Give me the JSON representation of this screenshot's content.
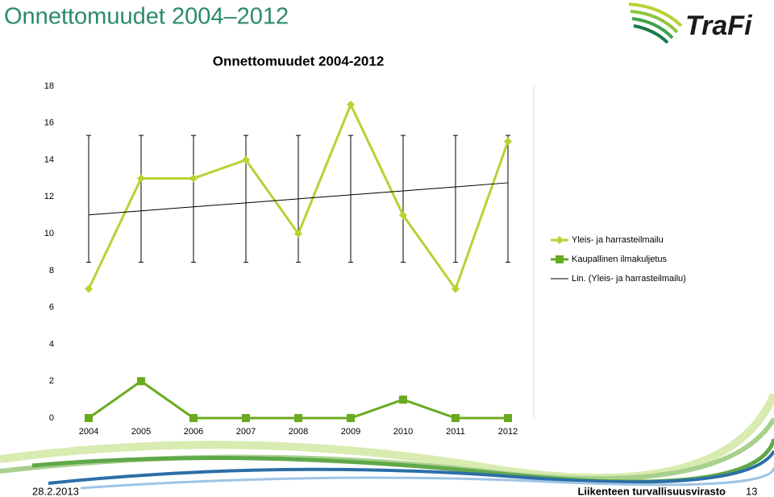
{
  "slide": {
    "title": "Onnettomuudet 2004–2012",
    "logo": "TraFi",
    "date": "28.2.2013",
    "organization": "Liikenteen turvallisuusvirasto",
    "page": "13"
  },
  "chart_data": {
    "type": "line",
    "title": "Onnettomuudet 2004-2012",
    "categories": [
      "2004",
      "2005",
      "2006",
      "2007",
      "2008",
      "2009",
      "2010",
      "2011",
      "2012"
    ],
    "series": [
      {
        "name": "Yleis- ja harrasteilmailu",
        "color": "#b5d334",
        "marker": "diamond",
        "values": [
          7,
          13,
          13,
          14,
          10,
          17,
          11,
          7,
          15
        ]
      },
      {
        "name": "Kaupallinen ilmakuljetus",
        "color": "#6aaa1e",
        "marker": "square",
        "values": [
          0,
          2,
          0,
          0,
          0,
          0,
          1,
          0,
          0
        ]
      },
      {
        "name": "Lin. (Yleis- ja harrasteilmailu)",
        "color": "#000000",
        "marker": "none",
        "values": [
          11.02,
          11.24,
          11.46,
          11.67,
          11.89,
          12.11,
          12.32,
          12.54,
          12.76
        ]
      }
    ],
    "error_bars": {
      "low": 8.45,
      "high": 15.33,
      "color": "#000000"
    },
    "ylim": [
      0,
      18
    ],
    "yticks": [
      0,
      2,
      4,
      6,
      8,
      10,
      12,
      14,
      16,
      18
    ],
    "grid": false,
    "legend": "right"
  }
}
